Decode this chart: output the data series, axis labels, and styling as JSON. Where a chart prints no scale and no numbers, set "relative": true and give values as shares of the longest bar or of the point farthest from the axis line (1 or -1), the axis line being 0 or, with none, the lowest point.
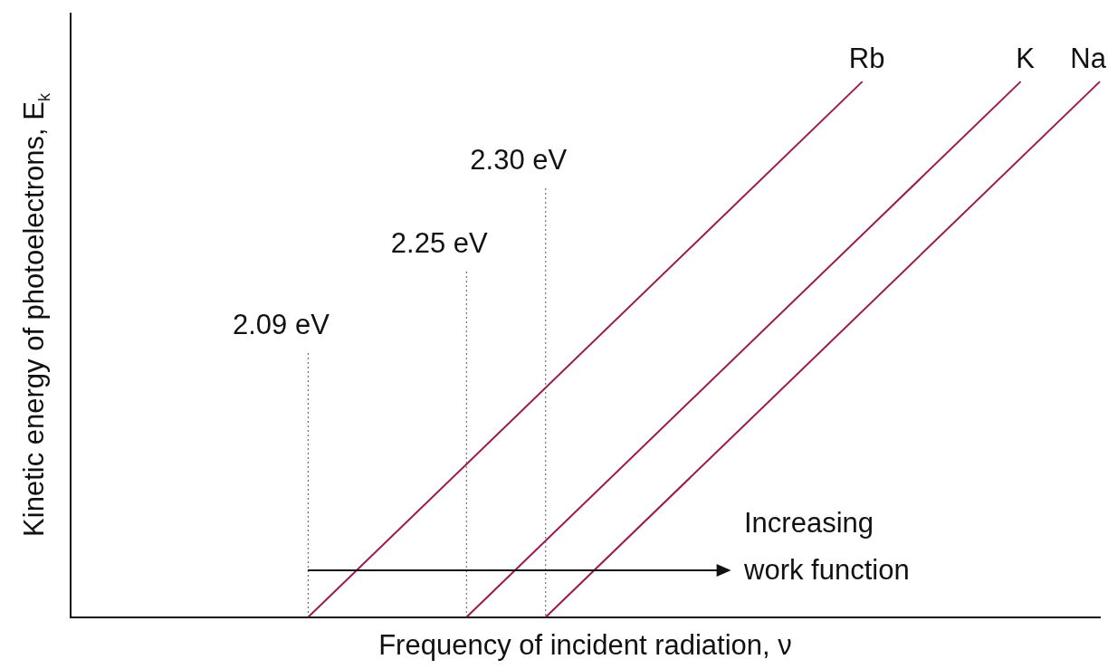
{
  "chart_data": {
    "type": "line",
    "relative": true,
    "xlabel": "Frequency of incident radiation, ν",
    "ylabel": "Kinetic energy of photoelectrons, E$_{k}$",
    "categories": [
      null,
      null,
      null,
      null,
      null,
      null,
      null,
      null,
      null,
      null,
      null,
      null,
      null,
      null
    ],
    "series": [
      {
        "name": "Rb",
        "color": "#9b1b4f",
        "values": [
          null,
          null,
          null,
          0,
          null,
          null,
          null,
          null,
          null,
          null,
          1,
          null,
          null,
          null
        ]
      },
      {
        "name": "K",
        "color": "#9b1b4f",
        "values": [
          null,
          null,
          null,
          null,
          null,
          0,
          null,
          null,
          null,
          null,
          null,
          null,
          1,
          null
        ]
      },
      {
        "name": "Na",
        "color": "#9b1b4f",
        "values": [
          null,
          null,
          null,
          null,
          null,
          null,
          0,
          null,
          null,
          null,
          null,
          null,
          null,
          1
        ]
      }
    ],
    "annotations": [
      "2.09 eV",
      "2.25 eV",
      "2.30 eV",
      "Increasing work function"
    ],
    "marker": "none",
    "line_style": "solid",
    "grid": false,
    "legend": false
  }
}
